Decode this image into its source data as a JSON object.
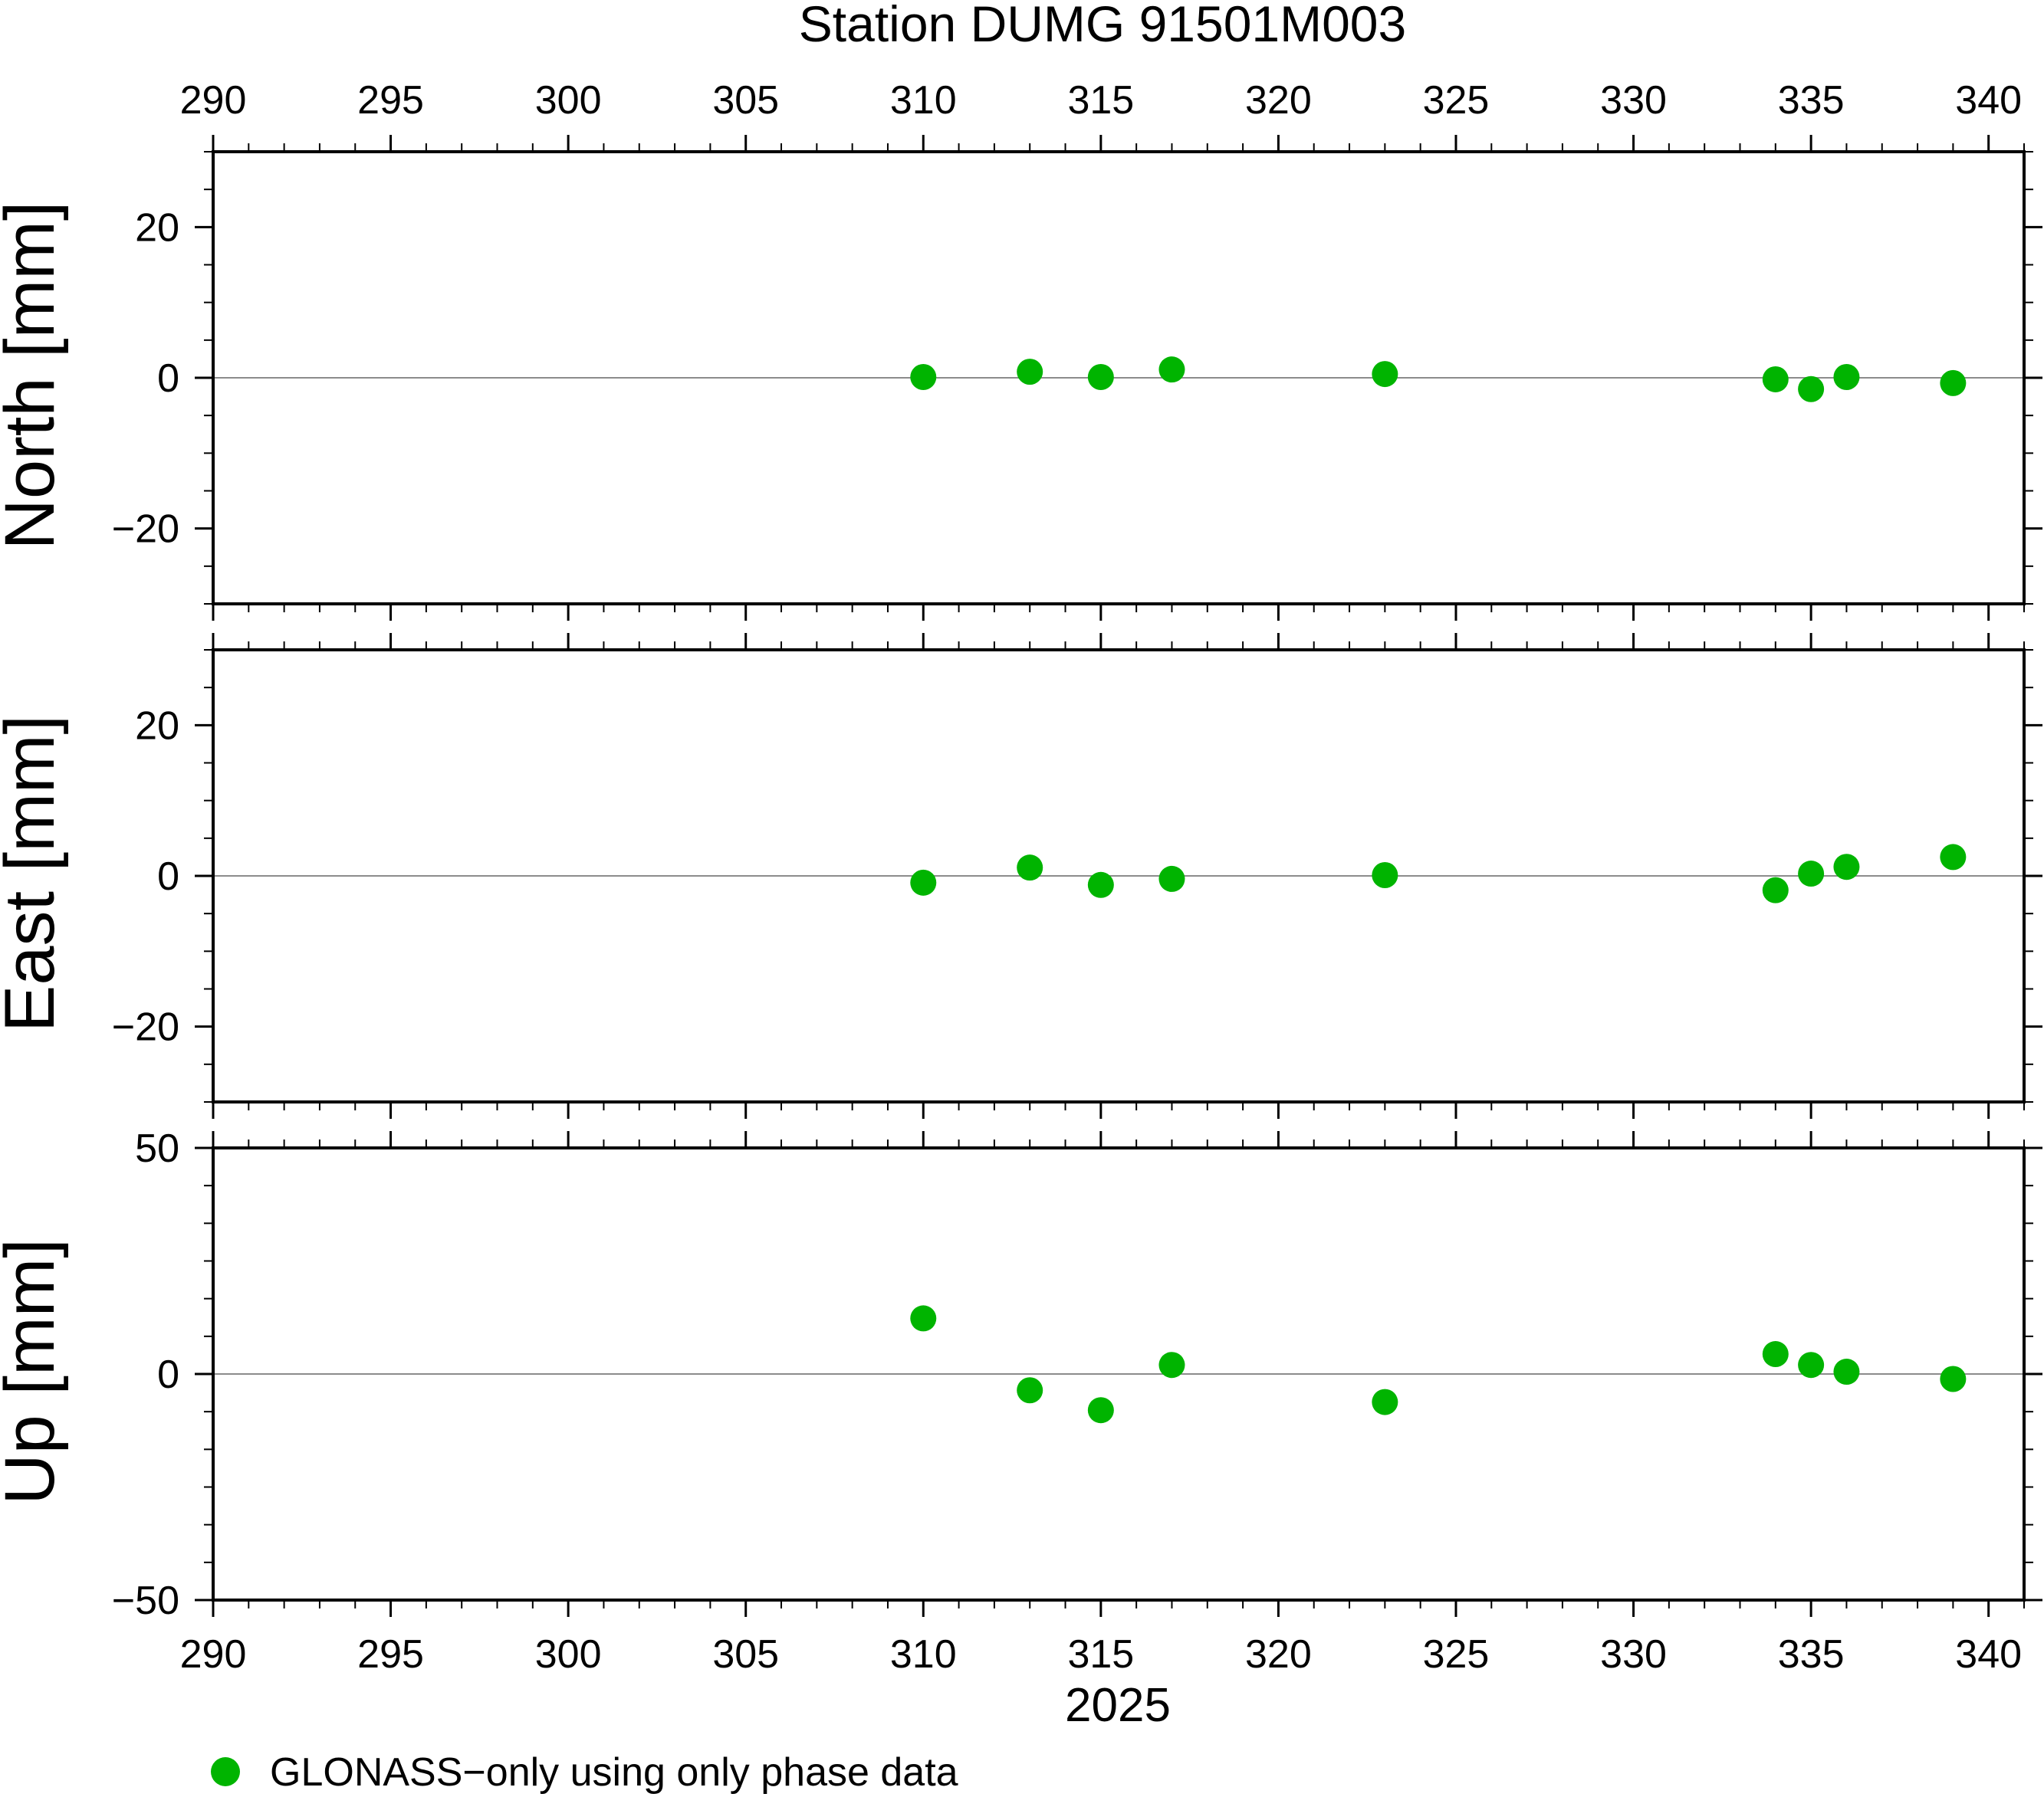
{
  "chart_data": {
    "type": "scatter",
    "title": "Station DUMG 91501M003",
    "xlabel": "2025",
    "xlim": [
      290,
      341
    ],
    "x_ticks": [
      290,
      295,
      300,
      305,
      310,
      315,
      320,
      325,
      330,
      335,
      340
    ],
    "x_tick_labels": [
      "290",
      "295",
      "300",
      "305",
      "310",
      "315",
      "320",
      "325",
      "330",
      "335",
      "340"
    ],
    "x": [
      310,
      313,
      315,
      317,
      323,
      334,
      335,
      336,
      339
    ],
    "marker_color": "#00b400",
    "legend": {
      "label": "GLONASS−only using only phase data",
      "position": "bottom-left"
    },
    "panels": [
      {
        "ylabel": "North [mm]",
        "ylim": [
          -30,
          30
        ],
        "y_ticks": [
          20,
          0,
          -20
        ],
        "y_tick_labels": [
          "20",
          "0",
          "−20"
        ],
        "y": [
          0.1,
          0.8,
          0.1,
          1.1,
          0.5,
          -0.2,
          -1.5,
          0.1,
          -0.7
        ]
      },
      {
        "ylabel": "East [mm]",
        "ylim": [
          -30,
          30
        ],
        "y_ticks": [
          20,
          0,
          -20
        ],
        "y_tick_labels": [
          "20",
          "0",
          "−20"
        ],
        "y": [
          -0.9,
          1.1,
          -1.2,
          -0.4,
          0.1,
          -1.9,
          0.3,
          1.2,
          2.5
        ]
      },
      {
        "ylabel": "Up [mm]",
        "ylim": [
          -50,
          50
        ],
        "y_ticks": [
          50,
          0,
          -50
        ],
        "y_tick_labels": [
          "50",
          "0",
          "−50"
        ],
        "y": [
          12.3,
          -3.6,
          -8.0,
          2.0,
          -6.2,
          4.4,
          2.0,
          0.5,
          -1.1
        ]
      }
    ]
  }
}
